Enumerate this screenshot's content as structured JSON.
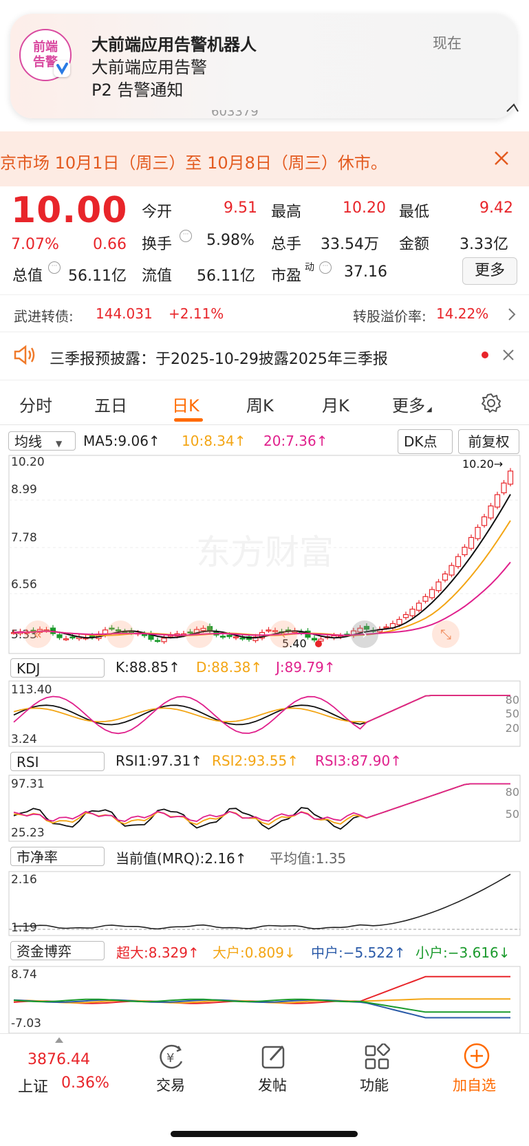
{
  "notification": {
    "logo_text": [
      "前端",
      "告警"
    ],
    "app_name": "大前端应用告警机器人",
    "line2": "大前端应用告警",
    "line3": "P2 告警通知",
    "time": "现在",
    "behind_text": "603379"
  },
  "banner": {
    "text": "京市场 10月1日（周三）至 10月8日（周三）休市。",
    "close_icon": "close-icon"
  },
  "quote": {
    "price": "10.00",
    "pct": "7.07%",
    "change": "0.66",
    "open_label": "今开",
    "open": "9.51",
    "high_label": "最高",
    "high": "10.20",
    "low_label": "最低",
    "low": "9.42",
    "turnover_label": "换手",
    "turnover": "5.98%",
    "volume_label": "总手",
    "volume": "33.54万",
    "amount_label": "金额",
    "amount": "3.33亿",
    "mktcap_label": "总值",
    "mktcap": "56.11亿",
    "float_label": "流值",
    "float": "56.11亿",
    "pe_label": "市盈",
    "pe_sup": "动",
    "pe": "37.16",
    "more": "更多"
  },
  "bond": {
    "name": "武进转债:",
    "price": "144.031",
    "change": "+2.11%",
    "premium_label": "转股溢价率:",
    "premium": "14.22%"
  },
  "announce": {
    "text": "三季报预披露：于2025-10-29披露2025年三季报"
  },
  "tabs": [
    {
      "label": "分时"
    },
    {
      "label": "五日"
    },
    {
      "label": "日K"
    },
    {
      "label": "周K"
    },
    {
      "label": "月K"
    },
    {
      "label": "更多"
    }
  ],
  "active_tab": 2,
  "ma": {
    "selector": "均线",
    "ma5": "MA5:9.06↑",
    "ma10": "10:8.34↑",
    "ma20": "20:7.36↑",
    "dk": "DK点",
    "fq": "前复权"
  },
  "kline": {
    "ticks": [
      "10.20",
      "8.99",
      "7.78",
      "6.56",
      "5.33"
    ],
    "max_label": "10.20→",
    "min_label": "5.40",
    "watermark": "东方财富"
  },
  "kdj": {
    "selector": "KDJ",
    "k": "K:88.85↑",
    "d": "D:88.38↑",
    "j": "J:89.79↑",
    "top": "113.40",
    "bottom": "3.24",
    "levels": [
      "80",
      "50",
      "20"
    ]
  },
  "rsi": {
    "selector": "RSI",
    "r1": "RSI1:97.31↑",
    "r2": "RSI2:93.55↑",
    "r3": "RSI3:87.90↑",
    "top": "97.31",
    "bottom": "25.23",
    "levels": [
      "80",
      "50"
    ]
  },
  "pb": {
    "selector": "市净率",
    "cur": "当前值(MRQ):2.16↑",
    "avg": "平均值:1.35",
    "top": "2.16",
    "bottom": "1.19"
  },
  "fund": {
    "selector": "资金博弈",
    "big": "超大:8.329↑",
    "large": "大户:0.809↓",
    "mid": "中户:−5.522↑",
    "small": "小户:−3.616↓",
    "top": "8.74",
    "bottom": "-7.03"
  },
  "bottom_nav": {
    "index_value": "3876.44",
    "index_name": "上证",
    "index_pct": "0.36%",
    "items": [
      {
        "label": "交易"
      },
      {
        "label": "发帖"
      },
      {
        "label": "功能"
      },
      {
        "label": "加自选"
      }
    ]
  },
  "colors": {
    "up": "#e8252a",
    "down": "#1a9a2c",
    "ma5": "#111111",
    "ma10": "#f3a514",
    "ma20": "#e0208c",
    "accent": "#ff6a00"
  }
}
